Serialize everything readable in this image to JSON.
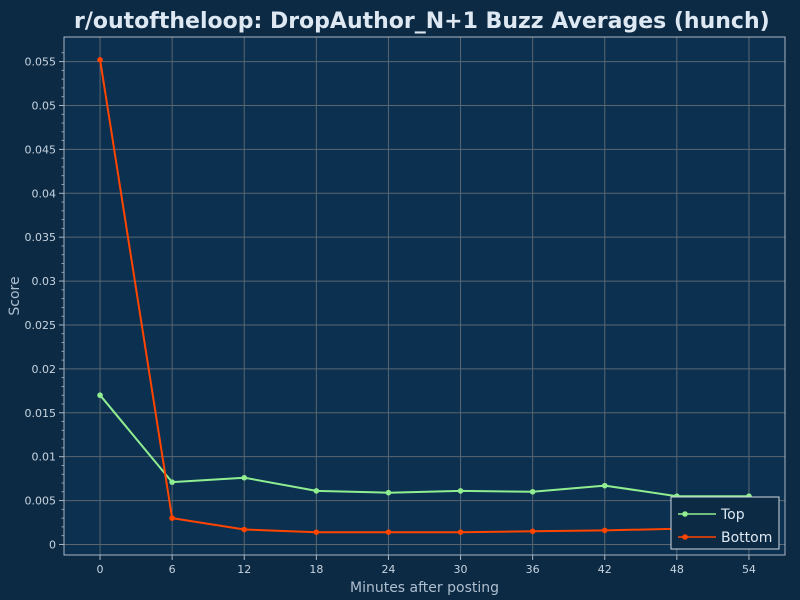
{
  "chart_data": {
    "type": "line",
    "title": "r/outoftheloop: DropAuthor_N+1 Buzz Averages (hunch)",
    "xlabel": "Minutes after posting",
    "ylabel": "Score",
    "x": [
      0,
      6,
      12,
      18,
      24,
      30,
      36,
      42,
      48,
      54
    ],
    "x_ticks": [
      "0",
      "6",
      "12",
      "18",
      "24",
      "30",
      "36",
      "42",
      "48",
      "54"
    ],
    "y_ticks": [
      "0",
      "0.005",
      "0.01",
      "0.015",
      "0.02",
      "0.025",
      "0.03",
      "0.035",
      "0.04",
      "0.045",
      "0.05",
      "0.055"
    ],
    "xlim": [
      -3,
      57
    ],
    "ylim": [
      -0.0012,
      0.0578
    ],
    "grid": true,
    "legend_position": "bottom-right",
    "series": [
      {
        "name": "Top",
        "color": "#90ee90",
        "values": [
          0.017,
          0.0071,
          0.0076,
          0.0061,
          0.0059,
          0.0061,
          0.006,
          0.0067,
          0.0055,
          0.0055
        ]
      },
      {
        "name": "Bottom",
        "color": "#ff4500",
        "values": [
          0.0552,
          0.003,
          0.0017,
          0.0014,
          0.0014,
          0.0014,
          0.0015,
          0.0016,
          0.0018,
          0.0019
        ]
      }
    ]
  },
  "colors": {
    "background": "#0d2a44",
    "plot_background": "#0b3050",
    "grid": "#5b6670",
    "text": "#dde8f2",
    "axis_text": "#aebfcf"
  }
}
